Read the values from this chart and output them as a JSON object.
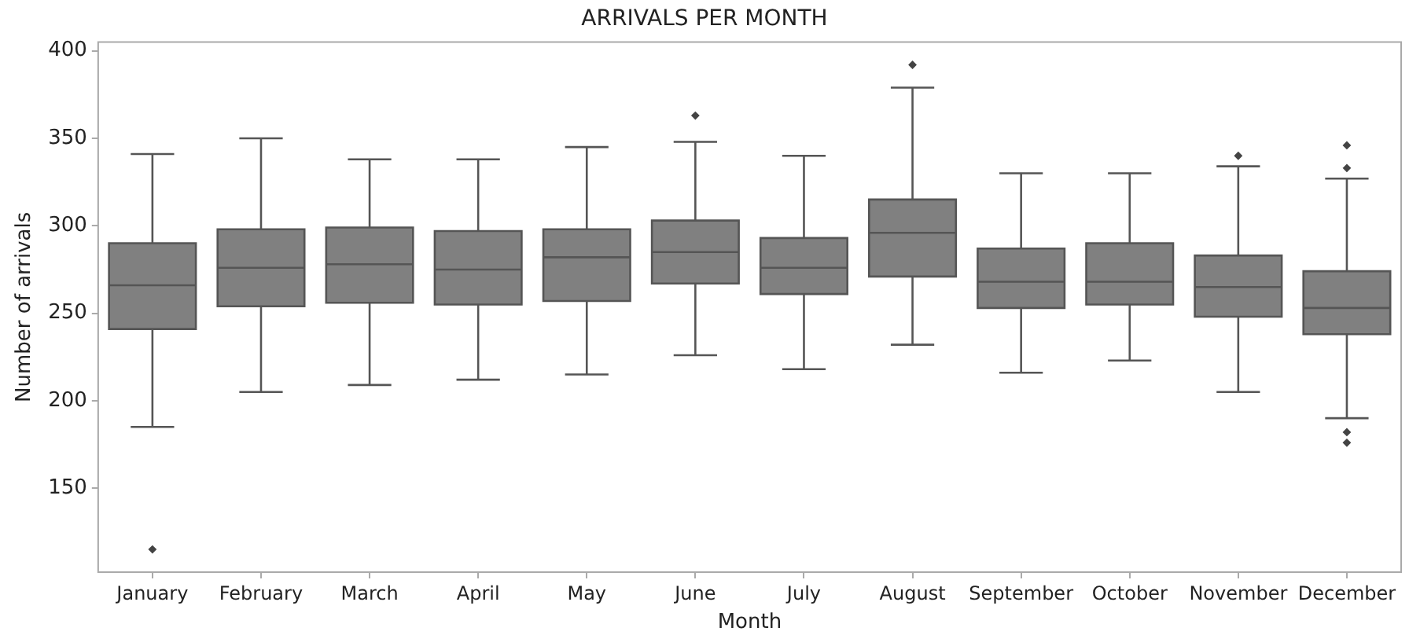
{
  "chart_data": {
    "type": "box",
    "title": "ARRIVALS PER MONTH",
    "xlabel": "Month",
    "ylabel": "Number of arrivals",
    "categories": [
      "January",
      "February",
      "March",
      "April",
      "May",
      "June",
      "July",
      "August",
      "September",
      "October",
      "November",
      "December"
    ],
    "color": "#808080",
    "ylim": [
      102,
      405
    ],
    "yticks": [
      150,
      200,
      250,
      300,
      350,
      400
    ],
    "grid": false,
    "legend": false,
    "boxes": [
      {
        "low": 185,
        "q1": 241,
        "median": 266,
        "q3": 290,
        "high": 341,
        "outliers": [
          115
        ]
      },
      {
        "low": 205,
        "q1": 254,
        "median": 276,
        "q3": 298,
        "high": 350
      },
      {
        "low": 209,
        "q1": 256,
        "median": 278,
        "q3": 299,
        "high": 338
      },
      {
        "low": 212,
        "q1": 255,
        "median": 275,
        "q3": 297,
        "high": 338
      },
      {
        "low": 215,
        "q1": 257,
        "median": 282,
        "q3": 298,
        "high": 345
      },
      {
        "low": 226,
        "q1": 267,
        "median": 285,
        "q3": 303,
        "high": 348,
        "outliers": [
          363
        ]
      },
      {
        "low": 218,
        "q1": 261,
        "median": 276,
        "q3": 293,
        "high": 340
      },
      {
        "low": 232,
        "q1": 271,
        "median": 296,
        "q3": 315,
        "high": 379,
        "outliers": [
          392
        ]
      },
      {
        "low": 216,
        "q1": 253,
        "median": 268,
        "q3": 287,
        "high": 330
      },
      {
        "low": 223,
        "q1": 255,
        "median": 268,
        "q3": 290,
        "high": 330
      },
      {
        "low": 205,
        "q1": 248,
        "median": 265,
        "q3": 283,
        "high": 334,
        "outliers": [
          340
        ]
      },
      {
        "low": 190,
        "q1": 238,
        "median": 253,
        "q3": 274,
        "high": 327,
        "outliers": [
          346,
          333,
          182,
          176
        ]
      }
    ]
  }
}
